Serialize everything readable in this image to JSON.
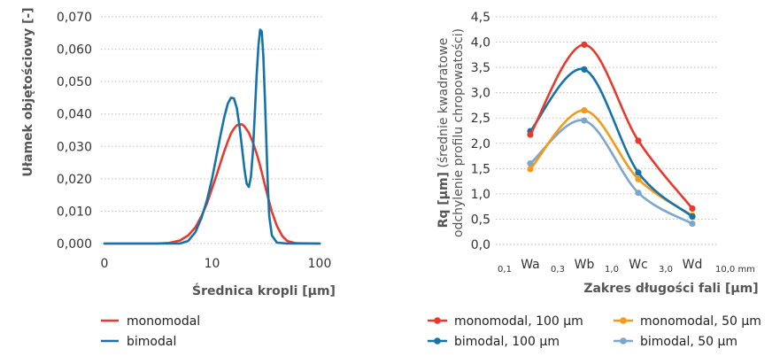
{
  "chart_data": [
    {
      "type": "line",
      "ylabel": "Ułamek objętościowy [-]",
      "xlabel": "Średnica kropli [µm]",
      "x_scale": "log",
      "xlim": [
        1,
        100
      ],
      "ylim": [
        0,
        0.07
      ],
      "x_ticks": [
        "0",
        "10",
        "100"
      ],
      "y_ticks": [
        "0,000",
        "0,010",
        "0,020",
        "0,030",
        "0,040",
        "0,050",
        "0,060",
        "0,070"
      ],
      "grid": "horizontal dotted",
      "legend_position": "bottom-left",
      "series": [
        {
          "name": "monomodal",
          "color": "#e63a2e",
          "points": [
            [
              1,
              0
            ],
            [
              3,
              0
            ],
            [
              4,
              0.0002
            ],
            [
              5,
              0.0009
            ],
            [
              6,
              0.0025
            ],
            [
              7,
              0.005
            ],
            [
              8,
              0.0085
            ],
            [
              9,
              0.0125
            ],
            [
              10,
              0.017
            ],
            [
              11,
              0.021
            ],
            [
              12,
              0.025
            ],
            [
              13,
              0.0285
            ],
            [
              14,
              0.0315
            ],
            [
              15,
              0.034
            ],
            [
              16,
              0.0355
            ],
            [
              17,
              0.0365
            ],
            [
              18,
              0.0368
            ],
            [
              19,
              0.0368
            ],
            [
              20,
              0.0362
            ],
            [
              22,
              0.0342
            ],
            [
              24,
              0.0312
            ],
            [
              26,
              0.0278
            ],
            [
              28,
              0.024
            ],
            [
              30,
              0.02
            ],
            [
              33,
              0.0145
            ],
            [
              36,
              0.0098
            ],
            [
              40,
              0.0055
            ],
            [
              45,
              0.0023
            ],
            [
              50,
              0.0008
            ],
            [
              60,
              0.0001
            ],
            [
              100,
              0
            ]
          ]
        },
        {
          "name": "bimodal",
          "color": "#1673a8",
          "points": [
            [
              1,
              0
            ],
            [
              5,
              0
            ],
            [
              6,
              0.0008
            ],
            [
              7,
              0.0035
            ],
            [
              8,
              0.008
            ],
            [
              9,
              0.0135
            ],
            [
              10,
              0.02
            ],
            [
              11,
              0.027
            ],
            [
              12,
              0.0335
            ],
            [
              13,
              0.039
            ],
            [
              14,
              0.0432
            ],
            [
              15,
              0.045
            ],
            [
              16,
              0.0448
            ],
            [
              17,
              0.0418
            ],
            [
              18,
              0.0362
            ],
            [
              19,
              0.0295
            ],
            [
              20,
              0.023
            ],
            [
              21,
              0.0185
            ],
            [
              22,
              0.0175
            ],
            [
              23,
              0.0205
            ],
            [
              24,
              0.0285
            ],
            [
              25,
              0.04
            ],
            [
              26,
              0.052
            ],
            [
              27,
              0.061
            ],
            [
              28,
              0.066
            ],
            [
              29,
              0.0655
            ],
            [
              30,
              0.0575
            ],
            [
              31,
              0.045
            ],
            [
              32,
              0.031
            ],
            [
              33,
              0.018
            ],
            [
              34,
              0.0085
            ],
            [
              36,
              0.0025
            ],
            [
              40,
              0.0003
            ],
            [
              50,
              0
            ],
            [
              100,
              0
            ]
          ]
        }
      ]
    },
    {
      "type": "line",
      "ylabel_bold": "Rq [µm]",
      "ylabel_rest": " (średnie kwadratowe",
      "ylabel_line2": "odchylenie profilu chropowatości)",
      "xlabel": "Zakres długości fali [µm]",
      "categories": [
        "Wa",
        "Wb",
        "Wc",
        "Wd"
      ],
      "boundary_labels": [
        "0,1",
        "0,3",
        "1,0",
        "3,0",
        "10,0 mm"
      ],
      "ylim": [
        0,
        4.5
      ],
      "y_ticks": [
        "0,0",
        "0,5",
        "1,0",
        "1,5",
        "2,0",
        "2,5",
        "3,0",
        "3,5",
        "4,0",
        "4,5"
      ],
      "grid": "horizontal dotted",
      "legend_position": "bottom",
      "series": [
        {
          "name": "monomodal, 100 µm",
          "color": "#e63a2e",
          "values": [
            2.17,
            3.95,
            2.05,
            0.71
          ]
        },
        {
          "name": "monomodal, 50 µm",
          "color": "#f39a1c",
          "values": [
            1.49,
            2.65,
            1.29,
            0.57
          ]
        },
        {
          "name": "bimodal, 100 µm",
          "color": "#1673a8",
          "values": [
            2.24,
            3.46,
            1.42,
            0.55
          ]
        },
        {
          "name": "bimodal, 50 µm",
          "color": "#7da6cc",
          "values": [
            1.6,
            2.45,
            1.02,
            0.41
          ]
        }
      ]
    }
  ]
}
